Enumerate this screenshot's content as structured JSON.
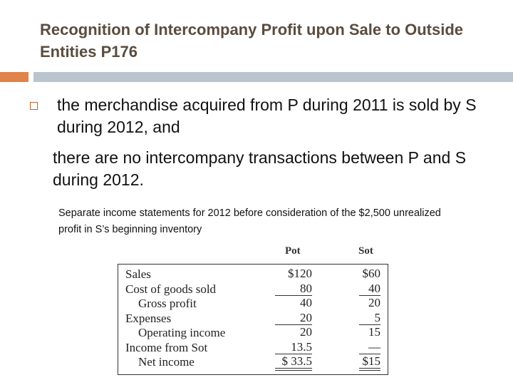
{
  "title": "Recognition of Intercompany Profit upon Sale to Outside Entities  P176",
  "bullets": [
    "the merchandise acquired from P during 2011 is sold by S during 2012, and",
    "there are no intercompany transactions between P and S during 2012."
  ],
  "note": "Separate income statements for 2012 before consideration of the $2,500 unrealized profit in S’s beginning inventory",
  "table": {
    "columns": [
      "Pot",
      "Sot"
    ],
    "rows": [
      [
        "Sales",
        "$120",
        "$60"
      ],
      [
        "Cost of goods sold",
        "80",
        "40"
      ],
      [
        "Gross profit",
        "40",
        "20"
      ],
      [
        "Expenses",
        "20",
        "5"
      ],
      [
        "Operating income",
        "20",
        "15"
      ],
      [
        "Income from Sot",
        "13.5",
        "—"
      ],
      [
        "Net income",
        "$ 33.5",
        "$15"
      ]
    ]
  }
}
